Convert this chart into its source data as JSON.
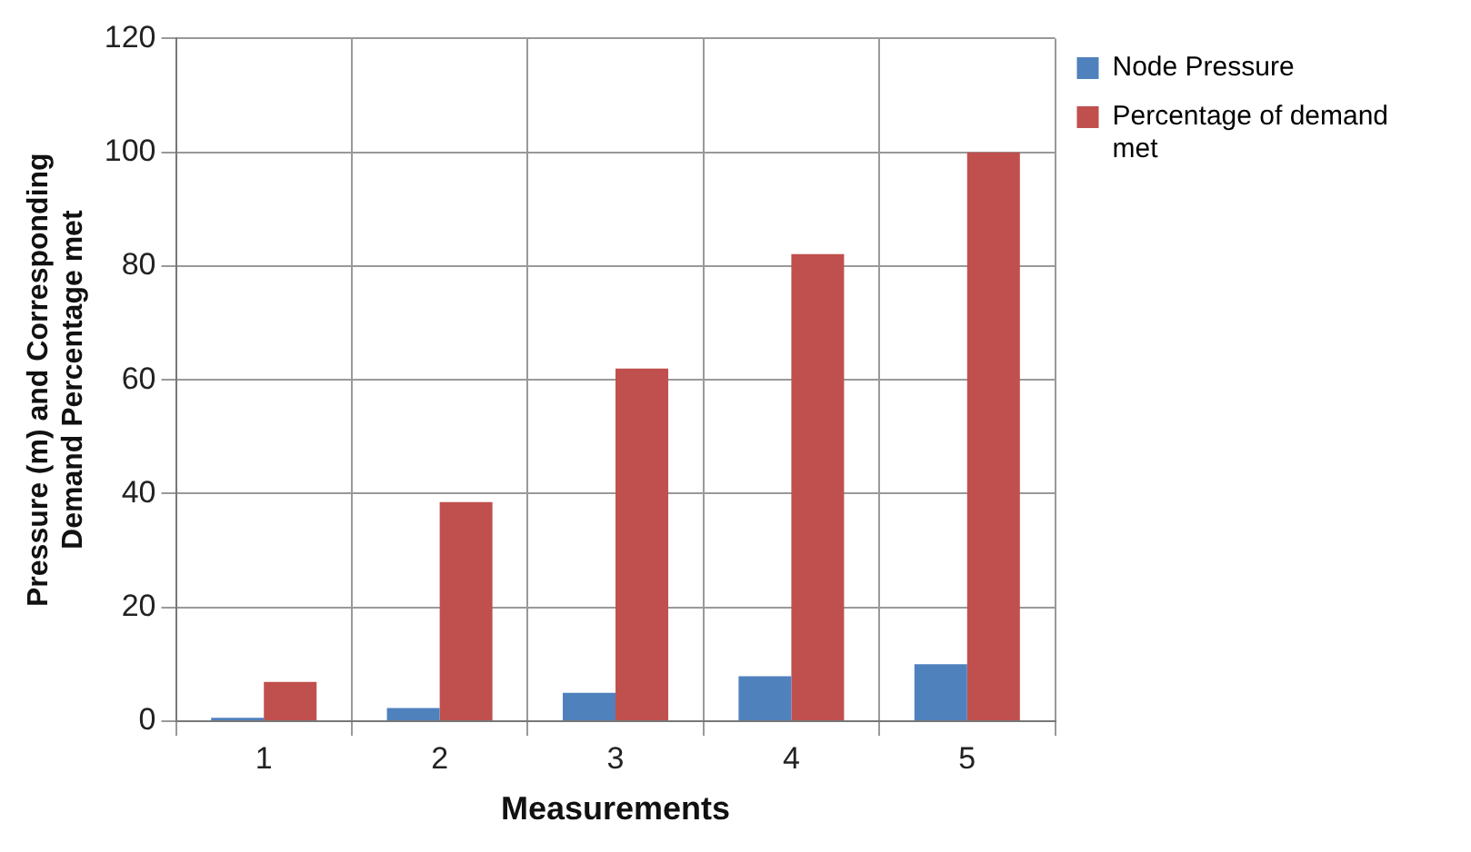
{
  "chart_data": {
    "type": "bar",
    "xlabel": "Measurements",
    "ylabel": "Pressure (m) and Corresponding Demand Percentage met",
    "categories": [
      "1",
      "2",
      "3",
      "4",
      "5"
    ],
    "series": [
      {
        "name": "Node Pressure",
        "color": "#4f81bd",
        "values": [
          0.6,
          2.3,
          5,
          7.9,
          10
        ]
      },
      {
        "name": "Percentage of demand met",
        "color": "#c0504d",
        "values": [
          6.9,
          38.5,
          62,
          82.1,
          100
        ]
      }
    ],
    "ylim": [
      0,
      120
    ],
    "yticks": [
      0,
      20,
      40,
      60,
      80,
      100,
      120
    ],
    "grid": true,
    "legend": "top right"
  }
}
